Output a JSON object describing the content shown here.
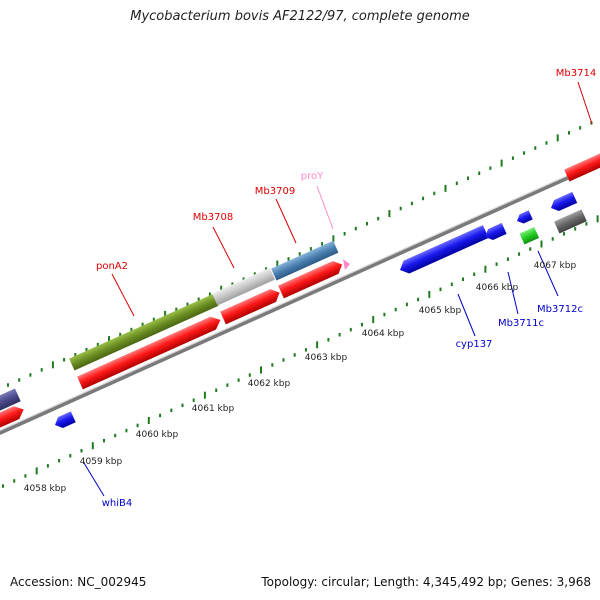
{
  "title": "Mycobacterium bovis AF2122/97, complete genome",
  "footer": {
    "accession": "Accession: NC_002945",
    "stats": "Topology: circular; Length: 4,345,492 bp; Genes: 3,968"
  },
  "colors": {
    "red": "#ff1a1a",
    "blue": "#1a1aee",
    "olive": "#6b8e23",
    "lightgray": "#c8c8c8",
    "steelblue": "#4a7fb0",
    "green": "#22cc22",
    "darkgray": "#666666",
    "slate": "#4a4a8a",
    "pink": "#ff88cc",
    "tick": "#1f7a1f",
    "backbone": "#808080"
  },
  "ruler_labels": [
    "4058 kbp",
    "4059 kbp",
    "4060 kbp",
    "4061 kbp",
    "4062 kbp",
    "4063 kbp",
    "4064 kbp",
    "4065 kbp",
    "4066 kbp",
    "4067 kbp"
  ],
  "gene_labels_top": [
    "ponA2",
    "Mb3708",
    "Mb3709",
    "proY",
    "Mb3714"
  ],
  "gene_labels_bottom": [
    "whiB4",
    "cyp137",
    "Mb3711c",
    "Mb3712c"
  ]
}
